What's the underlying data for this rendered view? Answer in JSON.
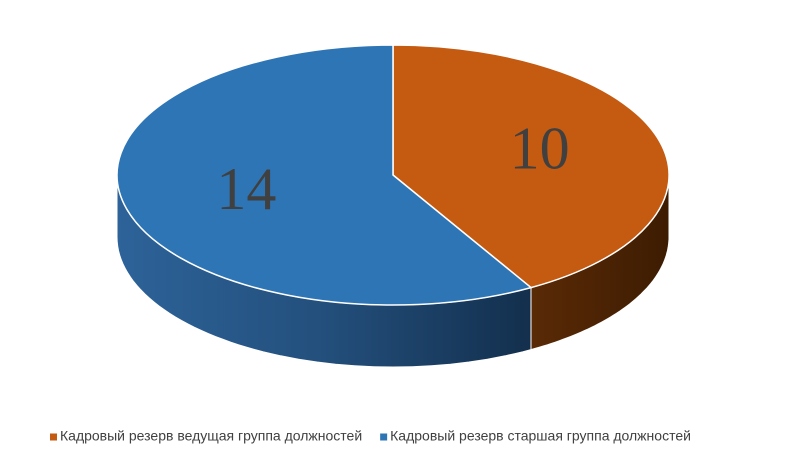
{
  "chart_data": {
    "type": "pie",
    "categories": [
      "Кадровый резерв ведущая группа должностей",
      "Кадровый резерв старшая группа должностей"
    ],
    "values": [
      10,
      14
    ],
    "colors": [
      "#c55a11",
      "#2e75b6"
    ],
    "legend": "bottom"
  }
}
